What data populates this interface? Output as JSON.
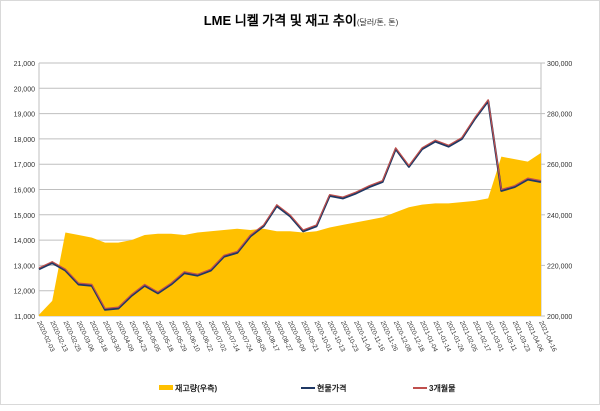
{
  "chart_data": {
    "type": "line",
    "title": "LME 니켈 가격 및 재고 추이",
    "title_unit": "(달러/톤, 톤)",
    "x": [
      "2020-02-03",
      "2020-02-13",
      "2020-02-25",
      "2020-03-06",
      "2020-03-18",
      "2020-03-30",
      "2020-04-09",
      "2020-04-23",
      "2020-05-05",
      "2020-05-18",
      "2020-05-29",
      "2020-06-10",
      "2020-06-22",
      "2020-07-02",
      "2020-07-14",
      "2020-07-24",
      "2020-08-05",
      "2020-08-17",
      "2020-08-27",
      "2020-09-09",
      "2020-09-21",
      "2020-10-01",
      "2020-10-13",
      "2020-10-23",
      "2020-11-04",
      "2020-11-16",
      "2020-11-26",
      "2020-12-08",
      "2020-12-18",
      "2021-01-04",
      "2021-01-14",
      "2021-01-26",
      "2021-02-05",
      "2021-02-17",
      "2021-03-01",
      "2021-03-11",
      "2021-03-23",
      "2021-04-06",
      "2021-04-16"
    ],
    "left_axis": {
      "ylim": [
        11000,
        21000
      ],
      "ticks": [
        "11,000",
        "12,000",
        "13,000",
        "14,000",
        "15,000",
        "16,000",
        "17,000",
        "18,000",
        "19,000",
        "20,000",
        "21,000"
      ]
    },
    "right_axis": {
      "ylim": [
        200000,
        300000
      ],
      "ticks": [
        "200,000",
        "220,000",
        "240,000",
        "260,000",
        "280,000",
        "300,000"
      ]
    },
    "grid": true,
    "legend_position": "bottom",
    "series": [
      {
        "name": "재고량(우측)",
        "axis": "right",
        "kind": "area",
        "color": "#FFC000",
        "values": [
          200500,
          206000,
          233000,
          232000,
          231000,
          229000,
          229000,
          230000,
          232000,
          232500,
          232500,
          232000,
          233000,
          233500,
          234000,
          234500,
          234000,
          234500,
          233500,
          233500,
          233000,
          233500,
          235000,
          236000,
          237000,
          238000,
          239000,
          241000,
          243000,
          244000,
          244500,
          244500,
          245000,
          245500,
          246500,
          263000,
          262000,
          261000,
          264500
        ]
      },
      {
        "name": "현물가격",
        "axis": "left",
        "kind": "line",
        "color": "#1F3864",
        "values": [
          12850,
          13100,
          12800,
          12250,
          12200,
          11250,
          11300,
          11800,
          12200,
          11900,
          12250,
          12700,
          12600,
          12800,
          13350,
          13500,
          14150,
          14550,
          15350,
          14950,
          14350,
          14550,
          15750,
          15650,
          15850,
          16100,
          16300,
          17600,
          16900,
          17600,
          17900,
          17700,
          18000,
          18800,
          19500,
          15950,
          16100,
          16400,
          16300
        ]
      },
      {
        "name": "3개월물",
        "axis": "left",
        "kind": "line",
        "color": "#C0504D",
        "values": [
          12900,
          13150,
          12850,
          12300,
          12250,
          11300,
          11350,
          11850,
          12250,
          11950,
          12300,
          12750,
          12650,
          12850,
          13400,
          13550,
          14200,
          14600,
          15400,
          15000,
          14400,
          14600,
          15800,
          15700,
          15900,
          16150,
          16350,
          17650,
          16950,
          17650,
          17950,
          17750,
          18050,
          18850,
          19550,
          16000,
          16150,
          16450,
          16350
        ]
      }
    ]
  }
}
